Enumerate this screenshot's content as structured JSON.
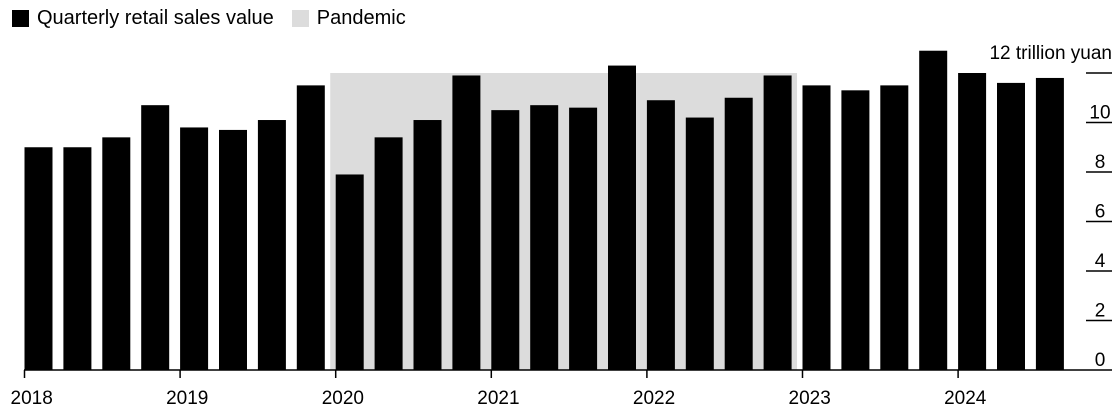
{
  "legend": {
    "sales_label": "Quarterly retail sales value",
    "pandemic_label": "Pandemic",
    "sales_color": "#000000",
    "pandemic_color": "#dcdcdc"
  },
  "chart_data": {
    "type": "bar",
    "title": "",
    "xlabel": "",
    "ylabel": "",
    "unit_label": "12 trillion yuan",
    "ylim": [
      0,
      12
    ],
    "y_ticks": [
      "0",
      "2",
      "4",
      "6",
      "8",
      "10"
    ],
    "x_year_labels": [
      "2018",
      "2019",
      "2020",
      "2021",
      "2022",
      "2023",
      "2024"
    ],
    "categories": [
      "2018 Q1",
      "2018 Q2",
      "2018 Q3",
      "2018 Q4",
      "2019 Q1",
      "2019 Q2",
      "2019 Q3",
      "2019 Q4",
      "2020 Q1",
      "2020 Q2",
      "2020 Q3",
      "2020 Q4",
      "2021 Q1",
      "2021 Q2",
      "2021 Q3",
      "2021 Q4",
      "2022 Q1",
      "2022 Q2",
      "2022 Q3",
      "2022 Q4",
      "2023 Q1",
      "2023 Q2",
      "2023 Q3",
      "2023 Q4",
      "2024 Q1",
      "2024 Q2",
      "2024 Q3"
    ],
    "series": [
      {
        "name": "Quarterly retail sales value",
        "values": [
          9.0,
          9.0,
          9.4,
          10.7,
          9.8,
          9.7,
          10.1,
          11.5,
          7.9,
          9.4,
          10.1,
          11.9,
          10.5,
          10.7,
          10.6,
          12.3,
          10.9,
          10.2,
          11.0,
          11.9,
          11.5,
          11.3,
          11.5,
          12.9,
          12.0,
          11.6,
          11.8
        ]
      }
    ],
    "pandemic_range": [
      "2020 Q1",
      "2022 Q4"
    ],
    "grid": false,
    "legend_position": "top-left"
  }
}
